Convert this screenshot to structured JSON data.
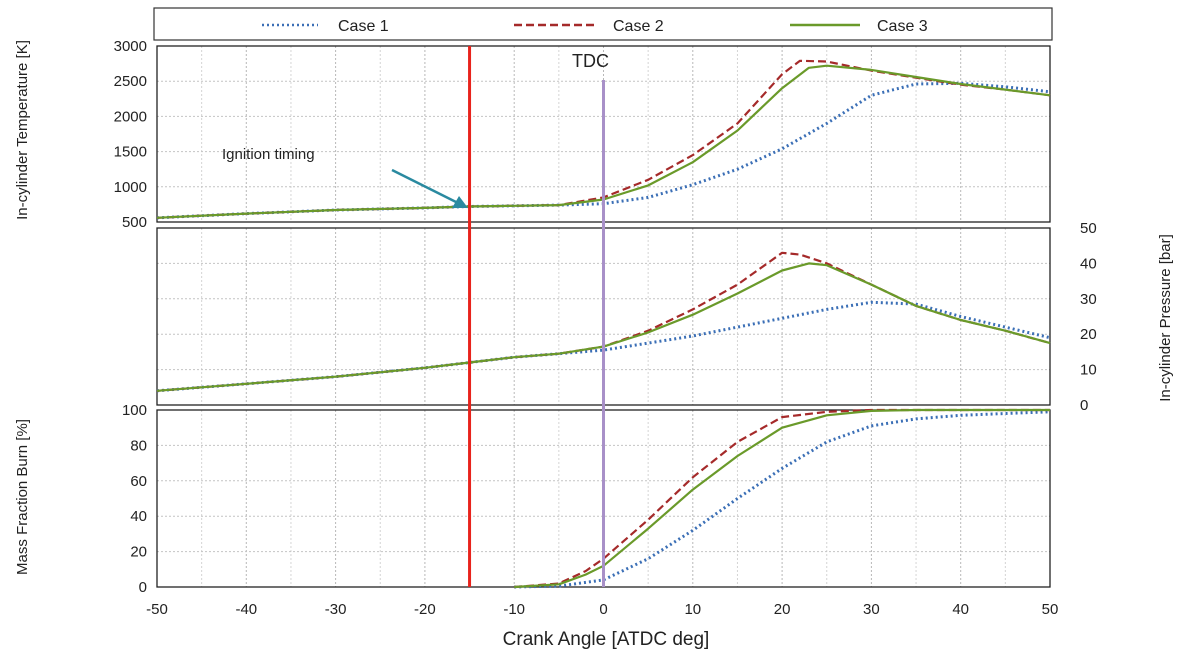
{
  "legend": {
    "case1": "Case 1",
    "case2": "Case 2",
    "case3": "Case 3"
  },
  "annotations": {
    "tdc_label": "TDC",
    "ignition_label": "Ignition timing"
  },
  "colors": {
    "case1": "#3b6fb6",
    "case2": "#a52a2a",
    "case3": "#6a9a2a",
    "ignition_line": "#e8231c",
    "tdc_line": "#a890c8",
    "arrow": "#2a8aa0"
  },
  "chart_data": [
    {
      "type": "line",
      "ylabel": "In-cylinder Temperature [K]",
      "ylim": [
        500,
        3000
      ],
      "yticks": [
        "500",
        "1000",
        "1500",
        "2000",
        "2500",
        "3000"
      ],
      "yaxis_side": "left",
      "xlim": [
        -50,
        50
      ],
      "ignition_x": -15,
      "tdc_x": 0,
      "series": [
        {
          "name": "Case 1",
          "style": "dotted",
          "x": [
            -50,
            -40,
            -30,
            -20,
            -15,
            -10,
            -5,
            0,
            5,
            10,
            15,
            20,
            25,
            30,
            35,
            40,
            45,
            50
          ],
          "y": [
            560,
            620,
            670,
            700,
            720,
            730,
            740,
            760,
            850,
            1030,
            1250,
            1540,
            1900,
            2300,
            2460,
            2470,
            2420,
            2350
          ]
        },
        {
          "name": "Case 2",
          "style": "dashed",
          "x": [
            -50,
            -40,
            -30,
            -20,
            -15,
            -10,
            -5,
            0,
            5,
            10,
            15,
            20,
            22,
            25,
            30,
            35,
            40,
            45,
            50
          ],
          "y": [
            560,
            620,
            670,
            700,
            720,
            730,
            740,
            850,
            1100,
            1450,
            1900,
            2600,
            2790,
            2780,
            2650,
            2550,
            2450,
            2380,
            2300
          ]
        },
        {
          "name": "Case 3",
          "style": "solid",
          "x": [
            -50,
            -40,
            -30,
            -20,
            -15,
            -10,
            -5,
            0,
            5,
            10,
            15,
            20,
            23,
            25,
            30,
            35,
            40,
            45,
            50
          ],
          "y": [
            560,
            620,
            670,
            700,
            720,
            730,
            740,
            820,
            1020,
            1350,
            1800,
            2400,
            2690,
            2720,
            2660,
            2560,
            2460,
            2380,
            2300
          ]
        }
      ]
    },
    {
      "type": "line",
      "ylabel": "In-cylinder Pressure [bar]",
      "ylim": [
        0,
        50
      ],
      "yticks": [
        "0",
        "10",
        "20",
        "30",
        "40",
        "50"
      ],
      "yaxis_side": "right",
      "xlim": [
        -50,
        50
      ],
      "series": [
        {
          "name": "Case 1",
          "style": "dotted",
          "x": [
            -50,
            -40,
            -30,
            -20,
            -15,
            -10,
            -5,
            0,
            5,
            10,
            15,
            20,
            25,
            30,
            35,
            40,
            45,
            50
          ],
          "y": [
            4,
            6,
            8,
            10.5,
            12,
            13.5,
            14.5,
            15.5,
            17.5,
            19.5,
            22,
            24.5,
            27,
            29,
            28.5,
            25,
            22,
            19
          ]
        },
        {
          "name": "Case 2",
          "style": "dashed",
          "x": [
            -50,
            -40,
            -30,
            -20,
            -15,
            -10,
            -5,
            0,
            5,
            10,
            15,
            20,
            22,
            25,
            30,
            35,
            40,
            45,
            50
          ],
          "y": [
            4,
            6,
            8,
            10.5,
            12,
            13.5,
            14.5,
            16.5,
            21,
            27,
            34,
            43,
            42.5,
            40,
            34,
            28,
            24,
            21,
            17.5
          ]
        },
        {
          "name": "Case 3",
          "style": "solid",
          "x": [
            -50,
            -40,
            -30,
            -20,
            -15,
            -10,
            -5,
            0,
            5,
            10,
            15,
            20,
            23,
            25,
            30,
            35,
            40,
            45,
            50
          ],
          "y": [
            4,
            6,
            8,
            10.5,
            12,
            13.5,
            14.5,
            16.5,
            20.5,
            25.5,
            31.5,
            38,
            40,
            39.5,
            34,
            28,
            24,
            21,
            17.5
          ]
        }
      ]
    },
    {
      "type": "line",
      "ylabel": "Mass Fraction Burn [%]",
      "xlabel": "Crank Angle [ATDC deg]",
      "ylim": [
        0,
        100
      ],
      "yticks": [
        "0",
        "20",
        "40",
        "60",
        "80",
        "100"
      ],
      "xticks": [
        "-50",
        "-40",
        "-30",
        "-20",
        "-10",
        "0",
        "10",
        "20",
        "30",
        "40",
        "50"
      ],
      "yaxis_side": "left",
      "xlim": [
        -50,
        50
      ],
      "series": [
        {
          "name": "Case 1",
          "style": "dotted",
          "x": [
            -10,
            -5,
            0,
            5,
            10,
            15,
            20,
            25,
            30,
            35,
            40,
            45,
            50
          ],
          "y": [
            0,
            0.5,
            4,
            16,
            32,
            50,
            67,
            82,
            91,
            95,
            97,
            98,
            99
          ]
        },
        {
          "name": "Case 2",
          "style": "dashed",
          "x": [
            -10,
            -5,
            -2,
            0,
            5,
            10,
            15,
            20,
            25,
            30,
            35,
            40,
            45,
            50
          ],
          "y": [
            0,
            2,
            9,
            16,
            38,
            62,
            82,
            96,
            99,
            100,
            100,
            100,
            100,
            100
          ]
        },
        {
          "name": "Case 3",
          "style": "solid",
          "x": [
            -10,
            -5,
            -2,
            0,
            5,
            10,
            15,
            20,
            25,
            30,
            35,
            40,
            45,
            50
          ],
          "y": [
            0,
            1.5,
            7,
            12,
            33,
            55,
            74,
            90,
            97,
            99.5,
            100,
            100,
            100,
            100
          ]
        }
      ]
    }
  ]
}
